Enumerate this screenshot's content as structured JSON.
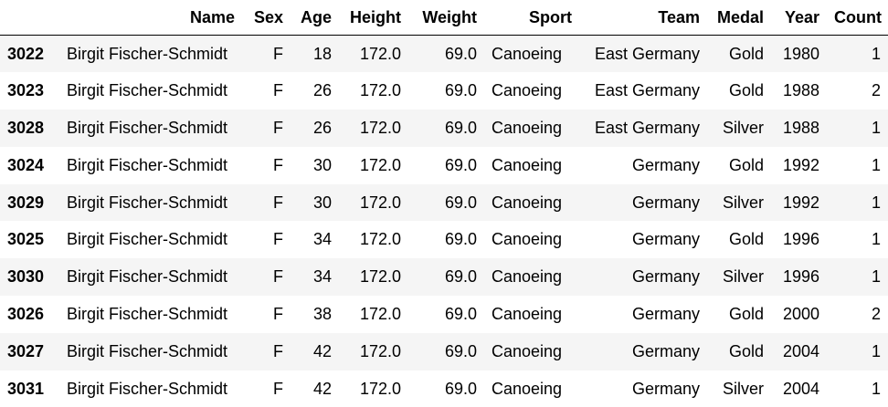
{
  "table": {
    "columns": [
      "",
      "Name",
      "Sex",
      "Age",
      "Height",
      "Weight",
      "Sport",
      "Team",
      "Medal",
      "Year",
      "Count"
    ],
    "rows": [
      {
        "index": "3022",
        "name": "Birgit Fischer-Schmidt",
        "sex": "F",
        "age": "18",
        "height": "172.0",
        "weight": "69.0",
        "sport": "Canoeing",
        "team": "East Germany",
        "medal": "Gold",
        "year": "1980",
        "count": "1"
      },
      {
        "index": "3023",
        "name": "Birgit Fischer-Schmidt",
        "sex": "F",
        "age": "26",
        "height": "172.0",
        "weight": "69.0",
        "sport": "Canoeing",
        "team": "East Germany",
        "medal": "Gold",
        "year": "1988",
        "count": "2"
      },
      {
        "index": "3028",
        "name": "Birgit Fischer-Schmidt",
        "sex": "F",
        "age": "26",
        "height": "172.0",
        "weight": "69.0",
        "sport": "Canoeing",
        "team": "East Germany",
        "medal": "Silver",
        "year": "1988",
        "count": "1"
      },
      {
        "index": "3024",
        "name": "Birgit Fischer-Schmidt",
        "sex": "F",
        "age": "30",
        "height": "172.0",
        "weight": "69.0",
        "sport": "Canoeing",
        "team": "Germany",
        "medal": "Gold",
        "year": "1992",
        "count": "1"
      },
      {
        "index": "3029",
        "name": "Birgit Fischer-Schmidt",
        "sex": "F",
        "age": "30",
        "height": "172.0",
        "weight": "69.0",
        "sport": "Canoeing",
        "team": "Germany",
        "medal": "Silver",
        "year": "1992",
        "count": "1"
      },
      {
        "index": "3025",
        "name": "Birgit Fischer-Schmidt",
        "sex": "F",
        "age": "34",
        "height": "172.0",
        "weight": "69.0",
        "sport": "Canoeing",
        "team": "Germany",
        "medal": "Gold",
        "year": "1996",
        "count": "1"
      },
      {
        "index": "3030",
        "name": "Birgit Fischer-Schmidt",
        "sex": "F",
        "age": "34",
        "height": "172.0",
        "weight": "69.0",
        "sport": "Canoeing",
        "team": "Germany",
        "medal": "Silver",
        "year": "1996",
        "count": "1"
      },
      {
        "index": "3026",
        "name": "Birgit Fischer-Schmidt",
        "sex": "F",
        "age": "38",
        "height": "172.0",
        "weight": "69.0",
        "sport": "Canoeing",
        "team": "Germany",
        "medal": "Gold",
        "year": "2000",
        "count": "2"
      },
      {
        "index": "3027",
        "name": "Birgit Fischer-Schmidt",
        "sex": "F",
        "age": "42",
        "height": "172.0",
        "weight": "69.0",
        "sport": "Canoeing",
        "team": "Germany",
        "medal": "Gold",
        "year": "2004",
        "count": "1"
      },
      {
        "index": "3031",
        "name": "Birgit Fischer-Schmidt",
        "sex": "F",
        "age": "42",
        "height": "172.0",
        "weight": "69.0",
        "sport": "Canoeing",
        "team": "Germany",
        "medal": "Silver",
        "year": "2004",
        "count": "1"
      }
    ]
  }
}
